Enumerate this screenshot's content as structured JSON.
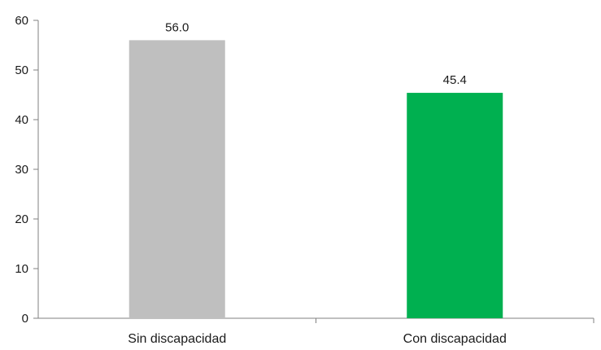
{
  "chart_data": {
    "type": "bar",
    "title": "",
    "xlabel": "",
    "ylabel": "",
    "categories": [
      "Sin discapacidad",
      "Con discapacidad"
    ],
    "values": [
      56.0,
      45.4
    ],
    "data_labels": [
      "56.0",
      "45.4"
    ],
    "colors": [
      "#bfbfbf",
      "#00b050"
    ],
    "ylim": [
      0,
      60
    ],
    "yticks": [
      0,
      10,
      20,
      30,
      40,
      50,
      60
    ],
    "grid": false,
    "legend": "none"
  }
}
